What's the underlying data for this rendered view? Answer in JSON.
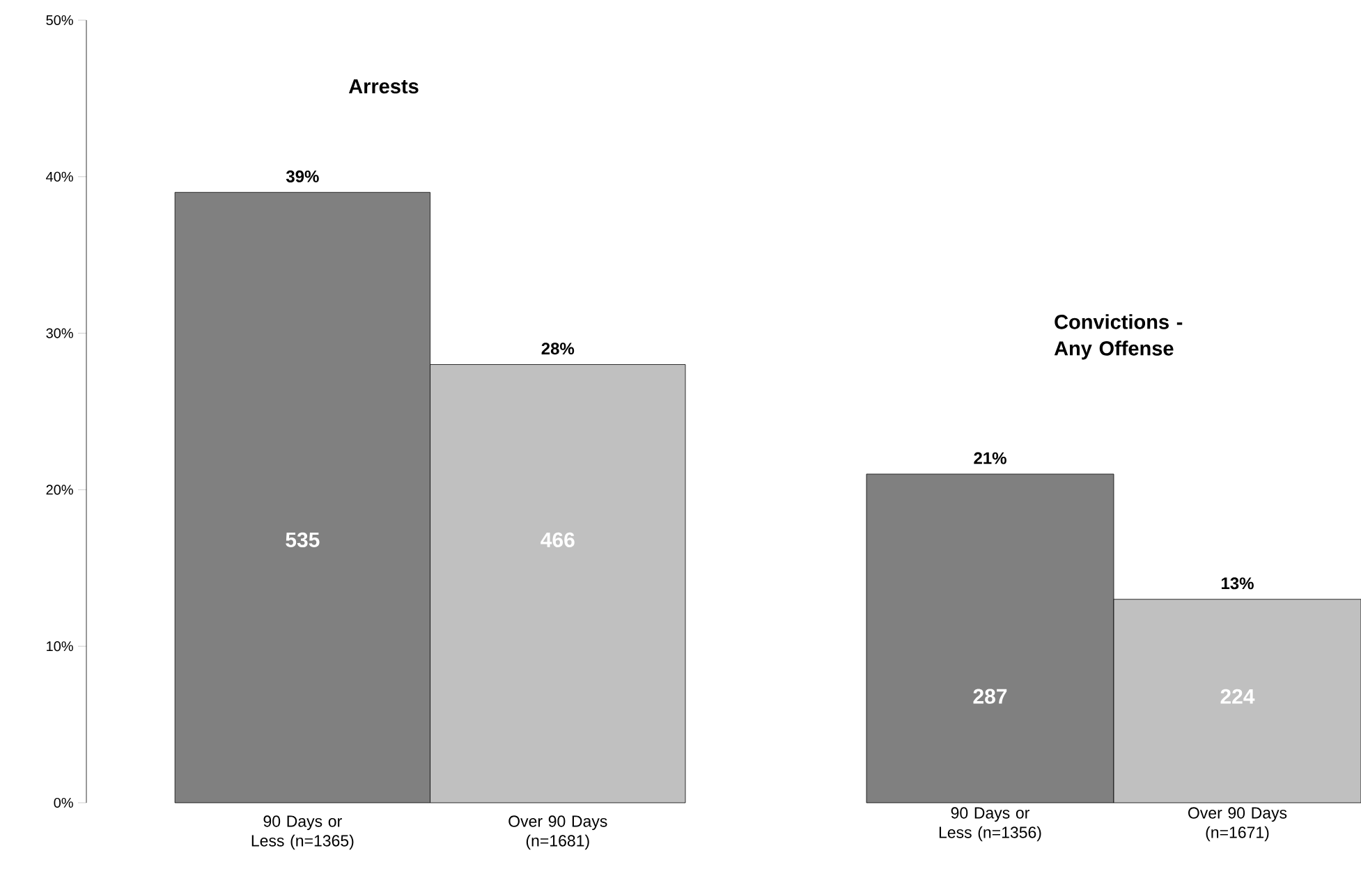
{
  "chart_data": [
    {
      "type": "bar",
      "title": "Arrests",
      "categories": [
        "90 Days or Less (n=1365)",
        "Over 90 Days (n=1681)"
      ],
      "values": [
        39,
        28
      ],
      "colors": [
        "#808080",
        "#c0c0c0"
      ],
      "value_labels": [
        "39%",
        "28%"
      ],
      "annotations": [
        "535",
        "466"
      ],
      "ylim": [
        0,
        50
      ],
      "yticks": [
        {
          "value": 0,
          "label": "0%"
        },
        {
          "value": 10,
          "label": "10%"
        },
        {
          "value": 20,
          "label": "20%"
        },
        {
          "value": 30,
          "label": "30%"
        },
        {
          "value": 40,
          "label": "40%"
        },
        {
          "value": 50,
          "label": "50%"
        }
      ]
    },
    {
      "type": "bar",
      "title": "Convictions - Any Offense",
      "categories": [
        "90 Days or Less (n=1356)",
        "Over 90 Days (n=1671)"
      ],
      "values": [
        21,
        13
      ],
      "colors": [
        "#808080",
        "#c0c0c0"
      ],
      "value_labels": [
        "21%",
        "13%"
      ],
      "annotations": [
        "287",
        "224"
      ],
      "ylim": [
        0,
        50
      ],
      "tick_labels": "x"
    }
  ]
}
